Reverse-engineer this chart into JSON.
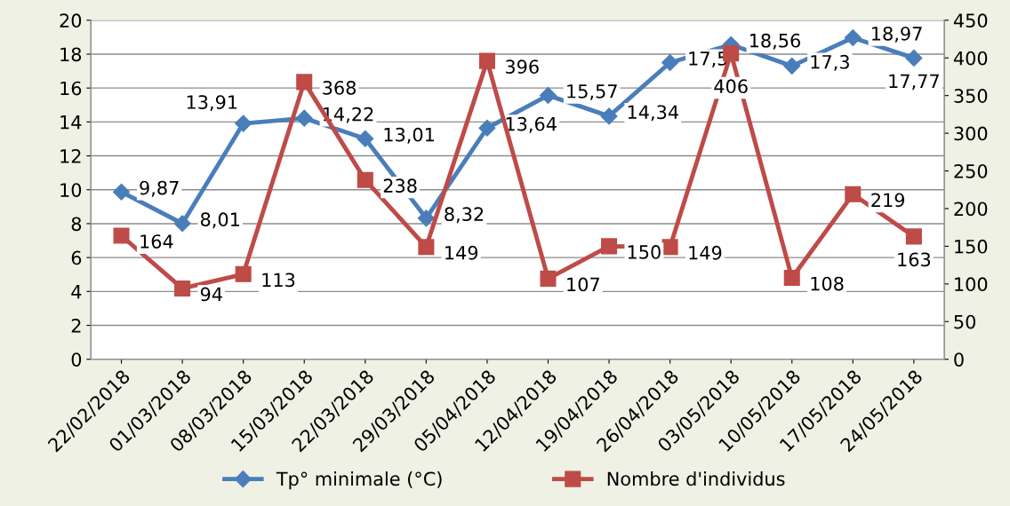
{
  "chart_data": {
    "type": "line",
    "categories": [
      "22/02/2018",
      "01/03/2018",
      "08/03/2018",
      "15/03/2018",
      "22/03/2018",
      "29/03/2018",
      "05/04/2018",
      "12/04/2018",
      "19/04/2018",
      "26/04/2018",
      "03/05/2018",
      "10/05/2018",
      "17/05/2018",
      "24/05/2018"
    ],
    "series": [
      {
        "name": "Tp° minimale (°C)",
        "color": "#4a7ebb",
        "marker": "diamond",
        "values": [
          9.87,
          8.01,
          13.91,
          14.22,
          13.01,
          8.32,
          13.64,
          15.57,
          14.34,
          17.5,
          18.56,
          17.3,
          18.97,
          17.77
        ],
        "value_labels": [
          "9,87",
          "8,01",
          "13,91",
          "14,22",
          "13,01",
          "8,32",
          "13,64",
          "15,57",
          "14,34",
          "17,5",
          "18,56",
          "17,3",
          "18,97",
          "17,77"
        ]
      },
      {
        "name": "Nombre d'individus",
        "color": "#be4b48",
        "marker": "square",
        "axis": "y2",
        "values": [
          164,
          94,
          113,
          368,
          238,
          149,
          396,
          107,
          150,
          149,
          406,
          108,
          219,
          163
        ],
        "value_labels": [
          "164",
          "94",
          "113",
          "368",
          "238",
          "149",
          "396",
          "107",
          "150",
          "149",
          "406",
          "108",
          "219",
          "163"
        ]
      }
    ],
    "ylim": [
      0,
      20
    ],
    "yticks": [
      0,
      2,
      4,
      6,
      8,
      10,
      12,
      14,
      16,
      18,
      20
    ],
    "y2lim": [
      0,
      450
    ],
    "y2ticks": [
      0,
      50,
      100,
      150,
      200,
      250,
      300,
      350,
      400,
      450
    ],
    "grid": "y",
    "legend": "bottom",
    "line_style": "solid"
  }
}
